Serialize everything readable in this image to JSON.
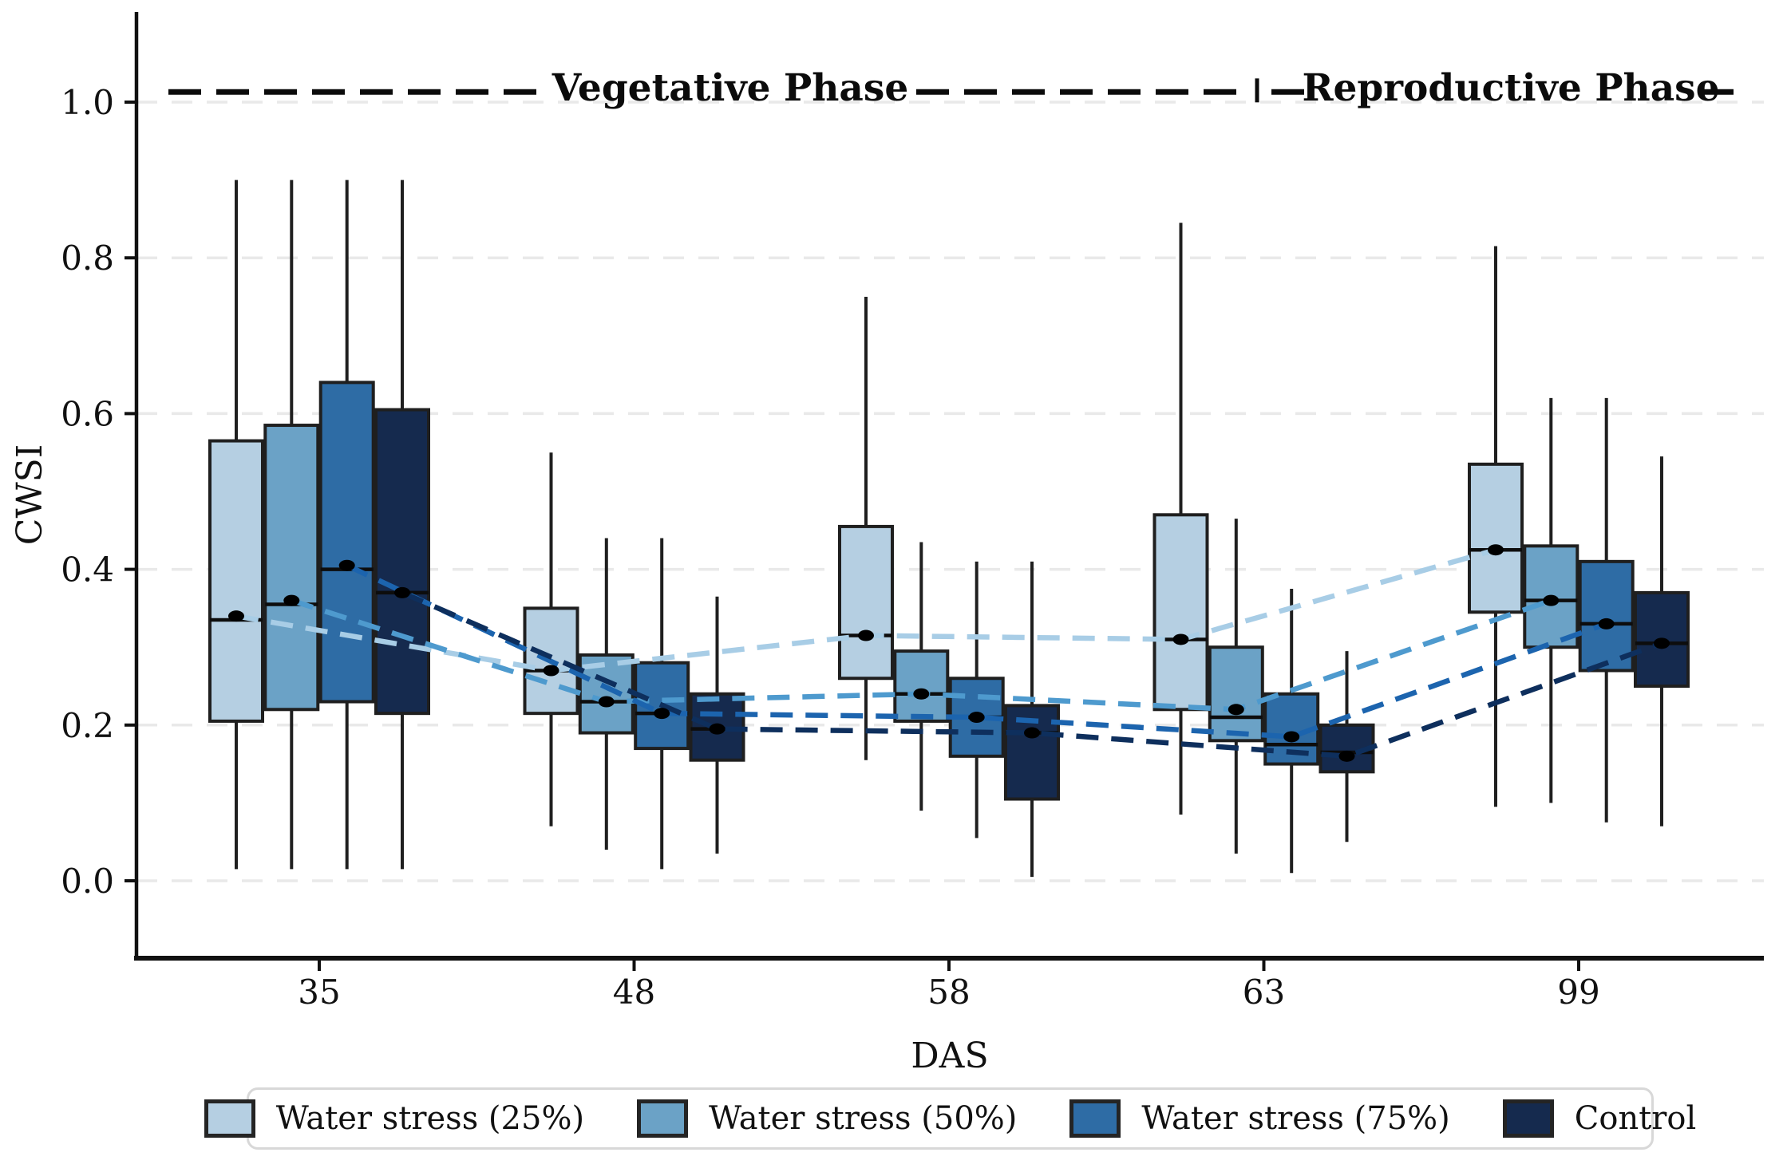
{
  "chart_data": {
    "type": "grouped_boxplot_with_mean_trend",
    "title": "",
    "xlabel": "DAS",
    "ylabel": "CWSI",
    "x_categories": [
      "35",
      "48",
      "58",
      "63",
      "99"
    ],
    "yticklabels": [
      "0.0",
      "0.2",
      "0.4",
      "0.6",
      "0.8",
      "1.0"
    ],
    "yticks": [
      0.0,
      0.2,
      0.4,
      0.6,
      0.8,
      1.0
    ],
    "ylim": [
      -0.1,
      1.115
    ],
    "grid": "horizontal-dashed",
    "legend_position": "bottom-center",
    "phase_annotation": {
      "left_label": "Vegetative Phase",
      "right_label": "Reproductive Phase",
      "line_y_value": 1.013,
      "separator_between": [
        "63",
        "99"
      ]
    },
    "style": {
      "grid_color": "#e9e9e9",
      "box_edge_color": "#1f1f1f",
      "median_color": "#0d0d0d",
      "mean_marker_color": "#000000",
      "axis_color": "#111111",
      "phase_line_color": "#0b0b0b",
      "legend_border_color": "#d8d8d8"
    },
    "series": [
      {
        "name": "Water stress (25%)",
        "box_color": "#b5cfe2",
        "trend_color": "#a8cde6",
        "means": [
          0.34,
          0.27,
          0.315,
          0.31,
          0.425
        ],
        "boxes": [
          {
            "whislo": 0.015,
            "q1": 0.205,
            "med": 0.335,
            "q3": 0.565,
            "whishi": 0.9
          },
          {
            "whislo": 0.07,
            "q1": 0.215,
            "med": 0.27,
            "q3": 0.35,
            "whishi": 0.55
          },
          {
            "whislo": 0.155,
            "q1": 0.26,
            "med": 0.315,
            "q3": 0.455,
            "whishi": 0.75
          },
          {
            "whislo": 0.085,
            "q1": 0.22,
            "med": 0.31,
            "q3": 0.47,
            "whishi": 0.845
          },
          {
            "whislo": 0.095,
            "q1": 0.345,
            "med": 0.425,
            "q3": 0.535,
            "whishi": 0.815
          }
        ]
      },
      {
        "name": "Water stress (50%)",
        "box_color": "#6ba2c6",
        "trend_color": "#4e9ace",
        "means": [
          0.36,
          0.23,
          0.24,
          0.22,
          0.36
        ],
        "boxes": [
          {
            "whislo": 0.015,
            "q1": 0.22,
            "med": 0.355,
            "q3": 0.585,
            "whishi": 0.9
          },
          {
            "whislo": 0.04,
            "q1": 0.19,
            "med": 0.23,
            "q3": 0.29,
            "whishi": 0.44
          },
          {
            "whislo": 0.09,
            "q1": 0.205,
            "med": 0.24,
            "q3": 0.295,
            "whishi": 0.435
          },
          {
            "whislo": 0.035,
            "q1": 0.18,
            "med": 0.21,
            "q3": 0.3,
            "whishi": 0.465
          },
          {
            "whislo": 0.1,
            "q1": 0.3,
            "med": 0.36,
            "q3": 0.43,
            "whishi": 0.62
          }
        ]
      },
      {
        "name": "Water stress (75%)",
        "box_color": "#2e6ca5",
        "trend_color": "#1c64ae",
        "means": [
          0.405,
          0.215,
          0.21,
          0.185,
          0.33
        ],
        "boxes": [
          {
            "whislo": 0.015,
            "q1": 0.23,
            "med": 0.4,
            "q3": 0.64,
            "whishi": 0.9
          },
          {
            "whislo": 0.015,
            "q1": 0.17,
            "med": 0.215,
            "q3": 0.28,
            "whishi": 0.44
          },
          {
            "whislo": 0.055,
            "q1": 0.16,
            "med": 0.21,
            "q3": 0.26,
            "whishi": 0.41
          },
          {
            "whislo": 0.01,
            "q1": 0.15,
            "med": 0.175,
            "q3": 0.24,
            "whishi": 0.375
          },
          {
            "whislo": 0.075,
            "q1": 0.27,
            "med": 0.33,
            "q3": 0.41,
            "whishi": 0.62
          }
        ]
      },
      {
        "name": "Control",
        "box_color": "#152a4e",
        "trend_color": "#0e2f5d",
        "means": [
          0.37,
          0.195,
          0.19,
          0.16,
          0.305
        ],
        "boxes": [
          {
            "whislo": 0.015,
            "q1": 0.215,
            "med": 0.37,
            "q3": 0.605,
            "whishi": 0.9
          },
          {
            "whislo": 0.035,
            "q1": 0.155,
            "med": 0.195,
            "q3": 0.24,
            "whishi": 0.365
          },
          {
            "whislo": 0.005,
            "q1": 0.105,
            "med": 0.19,
            "q3": 0.225,
            "whishi": 0.41
          },
          {
            "whislo": 0.05,
            "q1": 0.14,
            "med": 0.165,
            "q3": 0.2,
            "whishi": 0.295
          },
          {
            "whislo": 0.07,
            "q1": 0.25,
            "med": 0.305,
            "q3": 0.37,
            "whishi": 0.545
          }
        ]
      }
    ]
  }
}
